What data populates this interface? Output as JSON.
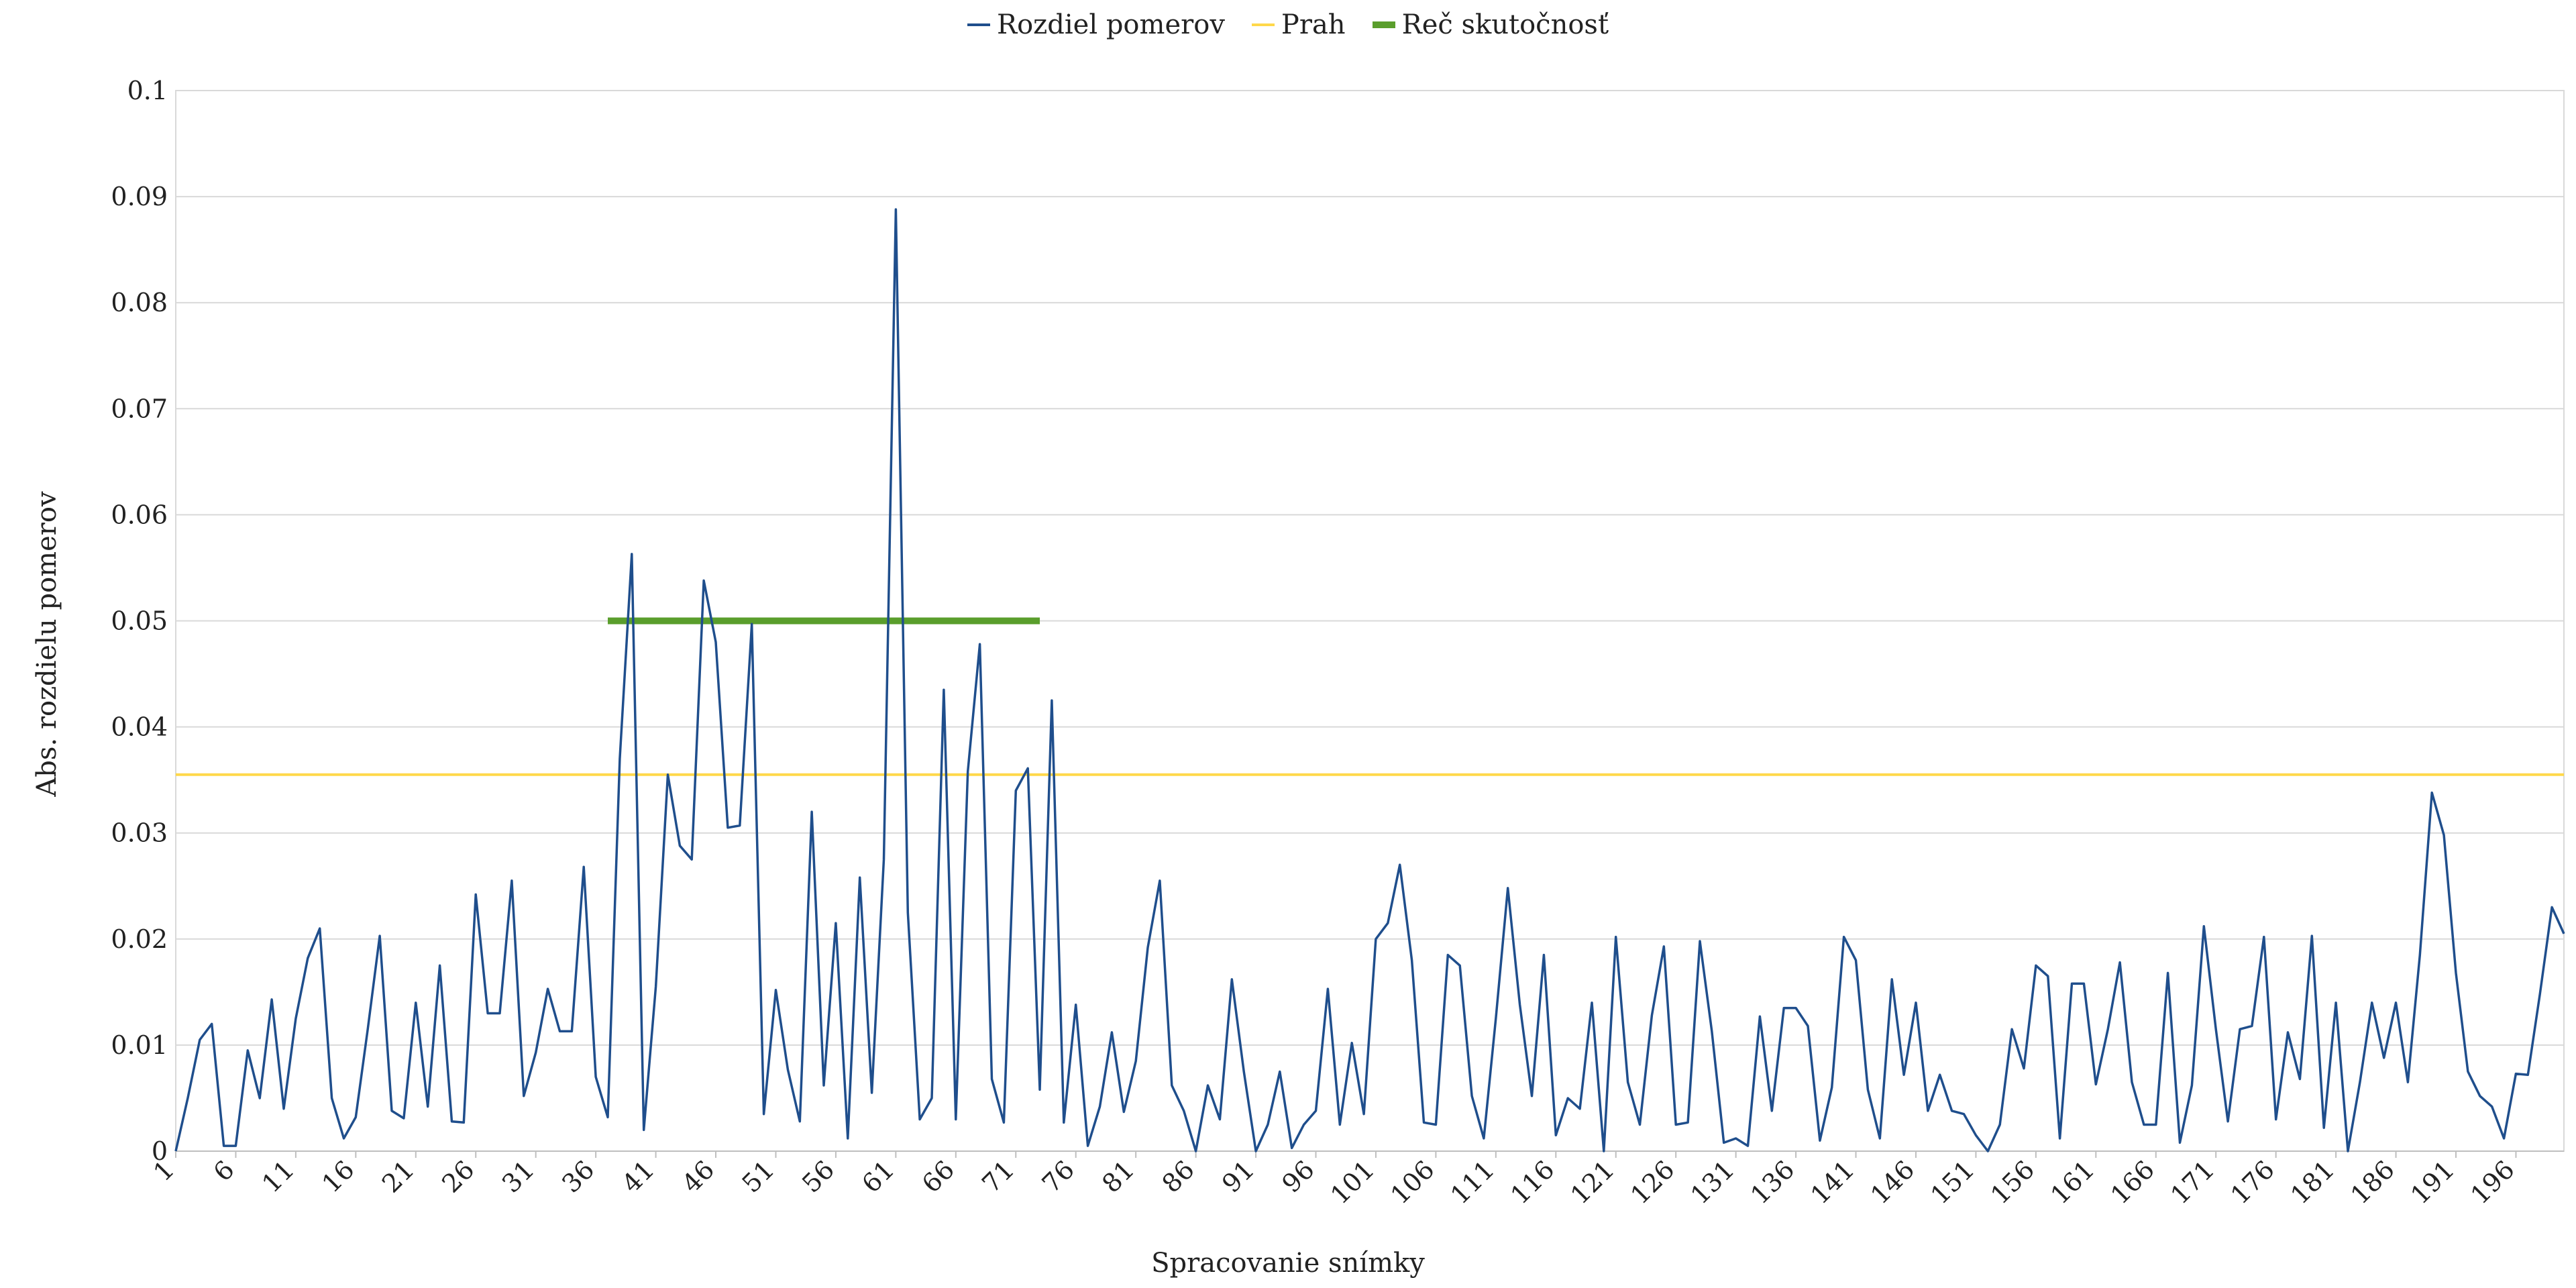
{
  "chart_data": {
    "type": "line",
    "xlabel": "Spracovanie snímky",
    "ylabel": "Abs. rozdielu pomerov",
    "ylim": [
      0,
      0.1
    ],
    "yticks": [
      "0",
      "0.01",
      "0.02",
      "0.03",
      "0.04",
      "0.05",
      "0.06",
      "0.07",
      "0.08",
      "0.09",
      "0.1"
    ],
    "xlim": [
      1,
      200
    ],
    "xticks": [
      "1",
      "6",
      "11",
      "16",
      "21",
      "26",
      "31",
      "36",
      "41",
      "46",
      "51",
      "56",
      "61",
      "66",
      "71",
      "76",
      "81",
      "86",
      "91",
      "96",
      "101",
      "106",
      "111",
      "116",
      "121",
      "126",
      "131",
      "136",
      "141",
      "146",
      "151",
      "156",
      "161",
      "166",
      "171",
      "176",
      "181",
      "186",
      "191",
      "196"
    ],
    "grid": true,
    "legend_position": "top-center",
    "series": [
      {
        "name": "Rozdiel pomerov",
        "color": "#1F4E8C",
        "x_start": 1,
        "values": [
          0,
          0.005,
          0.0105,
          0.012,
          0.0005,
          0.0005,
          0.0095,
          0.005,
          0.0143,
          0.004,
          0.0125,
          0.0182,
          0.021,
          0.005,
          0.0012,
          0.0032,
          0.0115,
          0.0203,
          0.0038,
          0.0031,
          0.014,
          0.0042,
          0.0175,
          0.0028,
          0.0027,
          0.0242,
          0.013,
          0.013,
          0.0255,
          0.0052,
          0.0093,
          0.0153,
          0.0113,
          0.0113,
          0.0268,
          0.007,
          0.0032,
          0.037,
          0.0563,
          0.002,
          0.0155,
          0.0355,
          0.0288,
          0.0275,
          0.0538,
          0.048,
          0.0305,
          0.0307,
          0.0497,
          0.0035,
          0.0152,
          0.0077,
          0.0028,
          0.032,
          0.0062,
          0.0215,
          0.0012,
          0.0258,
          0.0055,
          0.0275,
          0.0888,
          0.0225,
          0.003,
          0.005,
          0.0435,
          0.003,
          0.0358,
          0.0478,
          0.0068,
          0.0027,
          0.034,
          0.0361,
          0.0058,
          0.0425,
          0.0027,
          0.0138,
          0.0005,
          0.0042,
          0.0112,
          0.0037,
          0.0085,
          0.0192,
          0.0255,
          0.0062,
          0.0038,
          0,
          0.0062,
          0.003,
          0.0162,
          0.0075,
          0,
          0.0025,
          0.0075,
          0.0003,
          0.0025,
          0.0038,
          0.0153,
          0.0025,
          0.0102,
          0.0035,
          0.02,
          0.0215,
          0.027,
          0.018,
          0.0027,
          0.0025,
          0.0185,
          0.0175,
          0.0052,
          0.0012,
          0.0125,
          0.0248,
          0.0138,
          0.0052,
          0.0185,
          0.0015,
          0.005,
          0.004,
          0.014,
          0,
          0.0202,
          0.0065,
          0.0025,
          0.0128,
          0.0193,
          0.0025,
          0.0027,
          0.0198,
          0.0113,
          0.0008,
          0.0012,
          0.0005,
          0.0127,
          0.0038,
          0.0135,
          0.0135,
          0.0118,
          0.001,
          0.006,
          0.0202,
          0.018,
          0.0058,
          0.0012,
          0.0162,
          0.0072,
          0.014,
          0.0038,
          0.0072,
          0.0038,
          0.0035,
          0.0015,
          0,
          0.0025,
          0.0115,
          0.0078,
          0.0175,
          0.0165,
          0.0012,
          0.0158,
          0.0158,
          0.0063,
          0.0115,
          0.0178,
          0.0065,
          0.0025,
          0.0025,
          0.0168,
          0.0008,
          0.0062,
          0.0212,
          0.0115,
          0.0028,
          0.0115,
          0.0118,
          0.0202,
          0.003,
          0.0112,
          0.0068,
          0.0203,
          0.0022,
          0.014,
          0,
          0.0065,
          0.014,
          0.0088,
          0.014,
          0.0065,
          0.0185,
          0.0338,
          0.0298,
          0.0168,
          0.0075,
          0.0052,
          0.0042,
          0.0012,
          0.0073,
          0.0072,
          0.0148,
          0.023,
          0.0205
        ]
      },
      {
        "name": "Prah",
        "color": "#FFD84A",
        "constant": 0.0355
      },
      {
        "name": "Reč skutočnosť",
        "color": "#5A9E2C",
        "constant": 0.05,
        "x_from": 37,
        "x_to": 73
      }
    ]
  }
}
